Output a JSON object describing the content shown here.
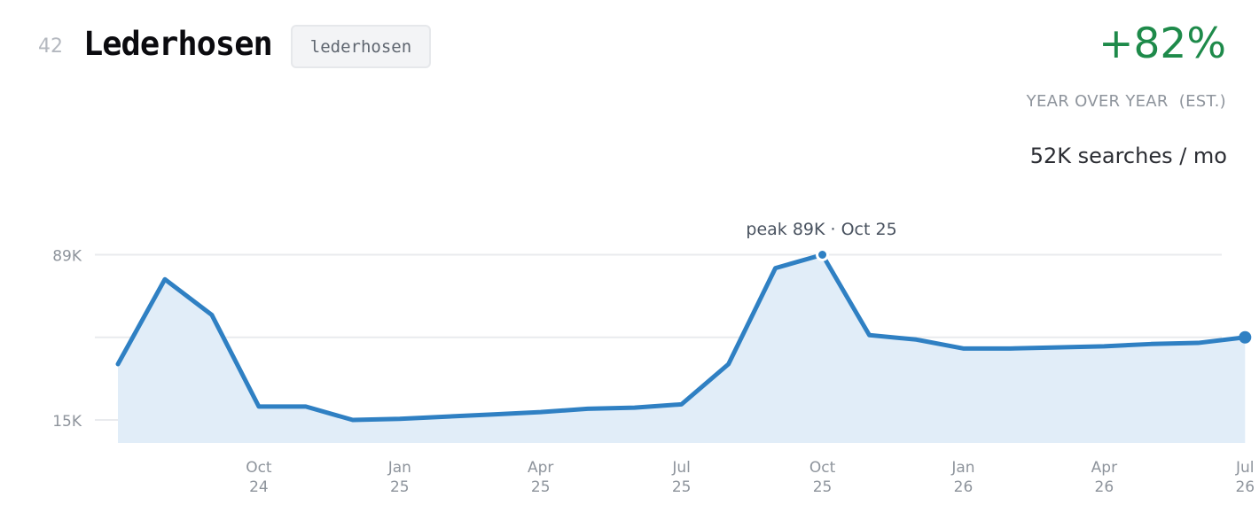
{
  "header": {
    "rank": "42",
    "title": "Lederhosen",
    "tag": "lederhosen",
    "growth": "+82%",
    "growth_label": "YEAR OVER YEAR  (EST.)",
    "volume": "52K searches / mo"
  },
  "colors": {
    "line": "#2f80c3",
    "fill": "#e1edf8",
    "growth": "#1e8a4a"
  },
  "chart_data": {
    "type": "area",
    "x": [
      "2024-07",
      "2024-08",
      "2024-09",
      "2024-10",
      "2024-11",
      "2024-12",
      "2025-01",
      "2025-02",
      "2025-03",
      "2025-04",
      "2025-05",
      "2025-06",
      "2025-07",
      "2025-08",
      "2025-09",
      "2025-10",
      "2025-11",
      "2025-12",
      "2026-01",
      "2026-02",
      "2026-03",
      "2026-04",
      "2026-05",
      "2026-06",
      "2026-07"
    ],
    "values": [
      40,
      78,
      62,
      21,
      21,
      15,
      15.5,
      16.5,
      17.5,
      18.5,
      20,
      20.5,
      22,
      40,
      83,
      89,
      53,
      51,
      47,
      47,
      47.5,
      48,
      49,
      49.5,
      52
    ],
    "ylim": [
      15,
      89
    ],
    "y_ticks": [
      "89K",
      "15K"
    ],
    "x_ticks": [
      {
        "month": "Oct",
        "year": "24"
      },
      {
        "month": "Jan",
        "year": "25"
      },
      {
        "month": "Apr",
        "year": "25"
      },
      {
        "month": "Jul",
        "year": "25"
      },
      {
        "month": "Oct",
        "year": "25"
      },
      {
        "month": "Jan",
        "year": "26"
      },
      {
        "month": "Apr",
        "year": "26"
      },
      {
        "month": "Jul",
        "year": "26"
      }
    ],
    "peak_label": "peak 89K · Oct 25",
    "grid": true
  }
}
